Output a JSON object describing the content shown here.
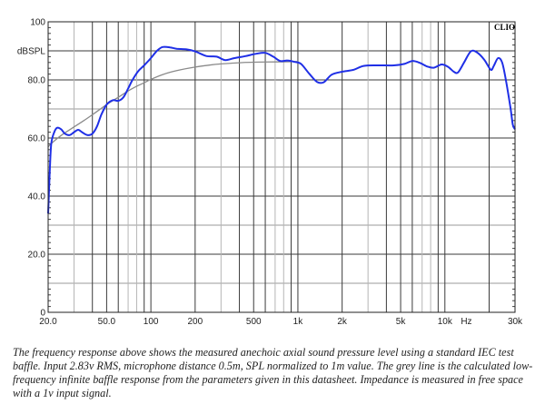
{
  "chart_data": {
    "type": "line",
    "title": "",
    "xlabel": "Hz",
    "ylabel": "dBSPL",
    "xscale": "log",
    "xlim": [
      20,
      30000
    ],
    "ylim": [
      0,
      100
    ],
    "grid": true,
    "watermark": "CLIO",
    "y_ticks": [
      {
        "value": 0,
        "label": "0"
      },
      {
        "value": 20,
        "label": "20.0"
      },
      {
        "value": 40,
        "label": "40.0"
      },
      {
        "value": 60,
        "label": "60.0"
      },
      {
        "value": 80,
        "label": "80.0"
      },
      {
        "value": 90,
        "label": "dBSPL"
      },
      {
        "value": 100,
        "label": "100"
      }
    ],
    "x_ticks": [
      {
        "value": 20,
        "label": "20.0"
      },
      {
        "value": 50,
        "label": "50.0"
      },
      {
        "value": 100,
        "label": "100"
      },
      {
        "value": 200,
        "label": "200"
      },
      {
        "value": 500,
        "label": "500"
      },
      {
        "value": 1000,
        "label": "1k"
      },
      {
        "value": 2000,
        "label": "2k"
      },
      {
        "value": 5000,
        "label": "5k"
      },
      {
        "value": 10000,
        "label": "10k"
      },
      {
        "value": 14000,
        "label": "Hz"
      },
      {
        "value": 30000,
        "label": "30k"
      }
    ],
    "series": [
      {
        "name": "Measured on-axis SPL",
        "color": "#1f2fe6",
        "points": [
          [
            20,
            34
          ],
          [
            20.5,
            48
          ],
          [
            21,
            58
          ],
          [
            22,
            62
          ],
          [
            23,
            63.5
          ],
          [
            24.5,
            63
          ],
          [
            26,
            61.5
          ],
          [
            28,
            61
          ],
          [
            30,
            62
          ],
          [
            32,
            62.8
          ],
          [
            34,
            62
          ],
          [
            37,
            61
          ],
          [
            40,
            61.5
          ],
          [
            43,
            64
          ],
          [
            46,
            68
          ],
          [
            50,
            71.5
          ],
          [
            55,
            73
          ],
          [
            60,
            72.8
          ],
          [
            65,
            74
          ],
          [
            70,
            77
          ],
          [
            75,
            80
          ],
          [
            82,
            83
          ],
          [
            90,
            85
          ],
          [
            100,
            87.5
          ],
          [
            110,
            90
          ],
          [
            120,
            91.3
          ],
          [
            135,
            91.2
          ],
          [
            150,
            90.7
          ],
          [
            175,
            90.5
          ],
          [
            200,
            89.8
          ],
          [
            240,
            88.2
          ],
          [
            280,
            88
          ],
          [
            320,
            86.8
          ],
          [
            370,
            87.5
          ],
          [
            440,
            88.2
          ],
          [
            520,
            89
          ],
          [
            600,
            89.3
          ],
          [
            680,
            88
          ],
          [
            760,
            86.5
          ],
          [
            850,
            86.7
          ],
          [
            950,
            86.2
          ],
          [
            1050,
            85.5
          ],
          [
            1200,
            82
          ],
          [
            1350,
            79.3
          ],
          [
            1500,
            79.2
          ],
          [
            1700,
            81.8
          ],
          [
            2000,
            82.8
          ],
          [
            2400,
            83.5
          ],
          [
            2800,
            84.8
          ],
          [
            3500,
            85
          ],
          [
            4500,
            85
          ],
          [
            5300,
            85.5
          ],
          [
            6000,
            86.5
          ],
          [
            6800,
            85.8
          ],
          [
            7600,
            84.6
          ],
          [
            8400,
            84.2
          ],
          [
            9500,
            85.3
          ],
          [
            10500,
            84.5
          ],
          [
            11500,
            82.8
          ],
          [
            12300,
            82.6
          ],
          [
            13500,
            86
          ],
          [
            15000,
            89.8
          ],
          [
            16500,
            89.5
          ],
          [
            18500,
            87
          ],
          [
            20500,
            83.5
          ],
          [
            21500,
            84.8
          ],
          [
            23000,
            87.5
          ],
          [
            24500,
            86
          ],
          [
            26000,
            80
          ],
          [
            28000,
            70
          ],
          [
            29000,
            64.5
          ],
          [
            30000,
            63
          ]
        ]
      },
      {
        "name": "Calculated LF infinite baffle response",
        "color": "#8a8a8a",
        "points": [
          [
            20,
            57
          ],
          [
            22,
            59
          ],
          [
            25,
            61.2
          ],
          [
            30,
            63.8
          ],
          [
            35,
            66
          ],
          [
            40,
            68
          ],
          [
            50,
            71.5
          ],
          [
            60,
            74
          ],
          [
            70,
            76.2
          ],
          [
            80,
            77.8
          ],
          [
            90,
            79
          ],
          [
            100,
            80.2
          ],
          [
            120,
            81.8
          ],
          [
            150,
            83.2
          ],
          [
            200,
            84.4
          ],
          [
            250,
            85.1
          ],
          [
            300,
            85.5
          ],
          [
            400,
            85.9
          ],
          [
            500,
            86.1
          ],
          [
            700,
            86.2
          ],
          [
            1000,
            86.3
          ]
        ]
      }
    ]
  },
  "caption": {
    "text": "The frequency response above shows the measured anechoic axial sound pressure level using a standard IEC test baffle. Input 2.83v RMS, microphone distance 0.5m, SPL normalized to 1m value. The grey line is the calculated low-frequency infinite baffle response from the parameters given in this datasheet. Impedance is measured in free space with a 1v input signal."
  },
  "colors": {
    "measured": "#1f2fe6",
    "calculated": "#8a8a8a",
    "grid_dark": "#3a3a3a",
    "grid_light": "#b5b5b5"
  }
}
